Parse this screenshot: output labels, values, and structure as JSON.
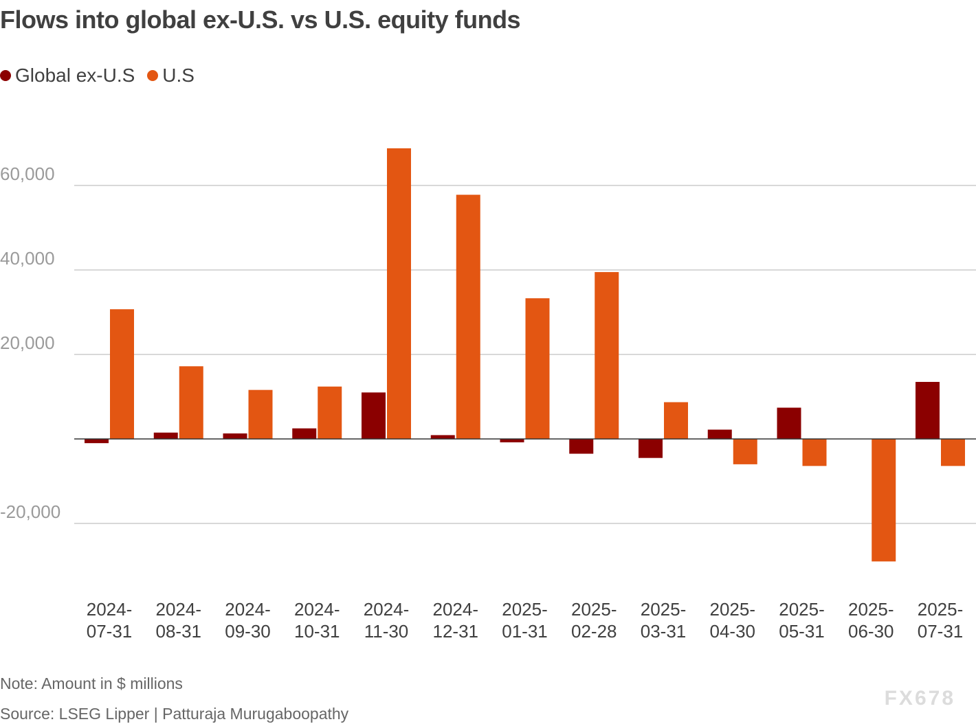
{
  "title": "Flows into global ex-U.S. vs U.S. equity funds",
  "legend": [
    {
      "name": "Global ex-U.S",
      "color": "#8b0000"
    },
    {
      "name": "U.S",
      "color": "#e35612"
    }
  ],
  "note": "Note: Amount in $ millions",
  "source": "Source: LSEG Lipper  | Patturaja Murugaboopathy",
  "watermark": "FX678",
  "chart_data": {
    "type": "bar",
    "categories": [
      "2024-07-31",
      "2024-08-31",
      "2024-09-30",
      "2024-10-31",
      "2024-11-30",
      "2024-12-31",
      "2025-01-31",
      "2025-02-28",
      "2025-03-31",
      "2025-04-30",
      "2025-05-31",
      "2025-06-30",
      "2025-07-31"
    ],
    "series": [
      {
        "name": "Global ex-U.S",
        "color": "#8b0000",
        "values": [
          -1000,
          1500,
          1300,
          2500,
          11000,
          900,
          -800,
          -3500,
          -4500,
          2200,
          7400,
          0,
          13500
        ]
      },
      {
        "name": "U.S",
        "color": "#e35612",
        "values": [
          30700,
          17200,
          11600,
          12400,
          68800,
          57800,
          33300,
          39500,
          8700,
          -6000,
          -6400,
          -29000,
          -6400
        ]
      }
    ],
    "yticks": [
      -20000,
      20000,
      40000,
      60000
    ],
    "ytick_labels": [
      "-20,000",
      "20,000",
      "40,000",
      "60,000"
    ],
    "ylim": [
      -30000,
      70000
    ],
    "grid": true,
    "legend_position": "top-left"
  }
}
